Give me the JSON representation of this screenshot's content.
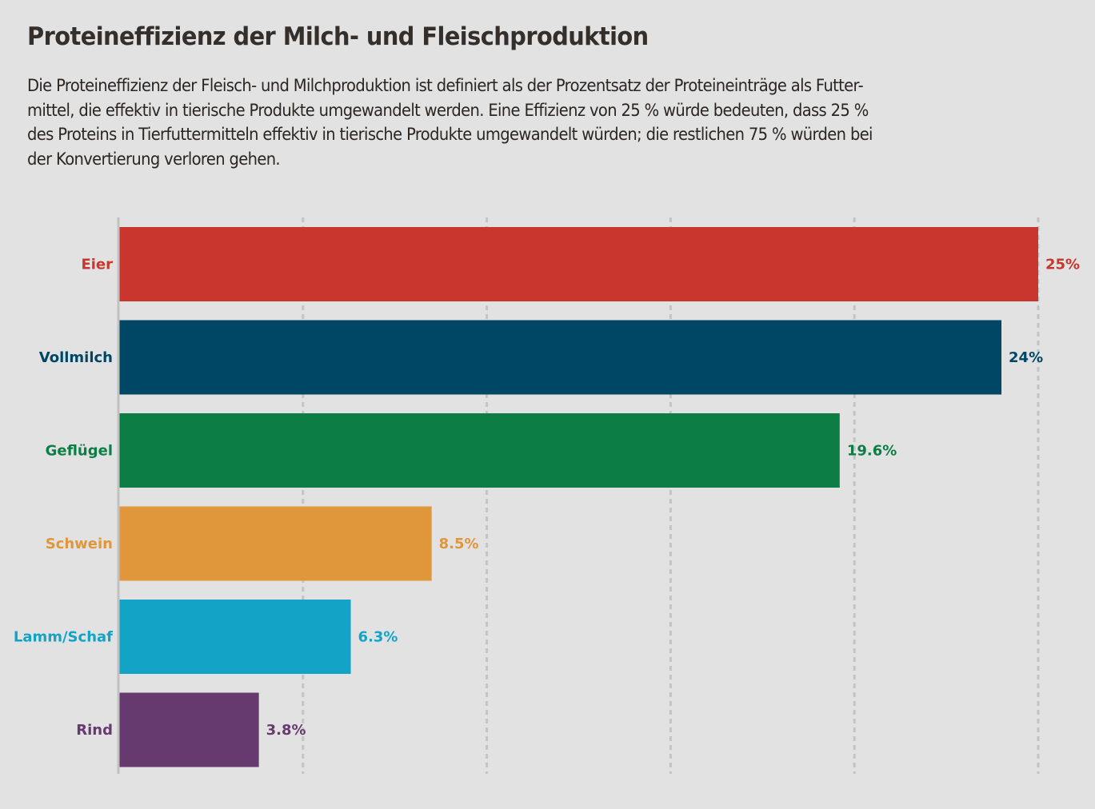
{
  "header": {
    "title": "Proteineffizienz der Milch- und Fleischproduktion",
    "description_lines": [
      "Die Proteineffizienz der Fleisch- und Milchproduktion ist definiert als der Prozentsatz der Proteineinträge als Futter-",
      "mittel, die effektiv in tierische Produkte umgewandelt werden. Eine Effizienz von 25 % würde bedeuten, dass 25 %",
      "des Proteins in Tierfuttermitteln effektiv in tierische Produkte umgewandelt würden; die restlichen 75 % würden bei",
      "der Konvertierung verloren gehen."
    ]
  },
  "chart_data": {
    "type": "bar",
    "orientation": "horizontal",
    "title": "Proteineffizienz der Milch- und Fleischproduktion",
    "xlabel": "",
    "ylabel": "",
    "xlim": [
      0,
      25
    ],
    "grid": true,
    "grid_ticks": [
      0,
      5,
      10,
      15,
      20,
      25
    ],
    "tick_labels_shown": false,
    "legend": "none",
    "unit": "%",
    "categories": [
      "Eier",
      "Vollmilch",
      "Geflügel",
      "Schwein",
      "Lamm/Schaf",
      "Rind"
    ],
    "values": [
      25,
      24,
      19.6,
      8.5,
      6.3,
      3.8
    ],
    "value_labels": [
      "25%",
      "24%",
      "19.6%",
      "8.5%",
      "6.3%",
      "3.8%"
    ],
    "colors": [
      "#c9362d",
      "#004765",
      "#0c7e45",
      "#e0963a",
      "#12a3c7",
      "#673a6f"
    ]
  },
  "colors": {
    "background": "#e3e2e2",
    "gridline": "#c5c4c4",
    "axis": "#c2c1c1",
    "title": "#352f2b"
  }
}
